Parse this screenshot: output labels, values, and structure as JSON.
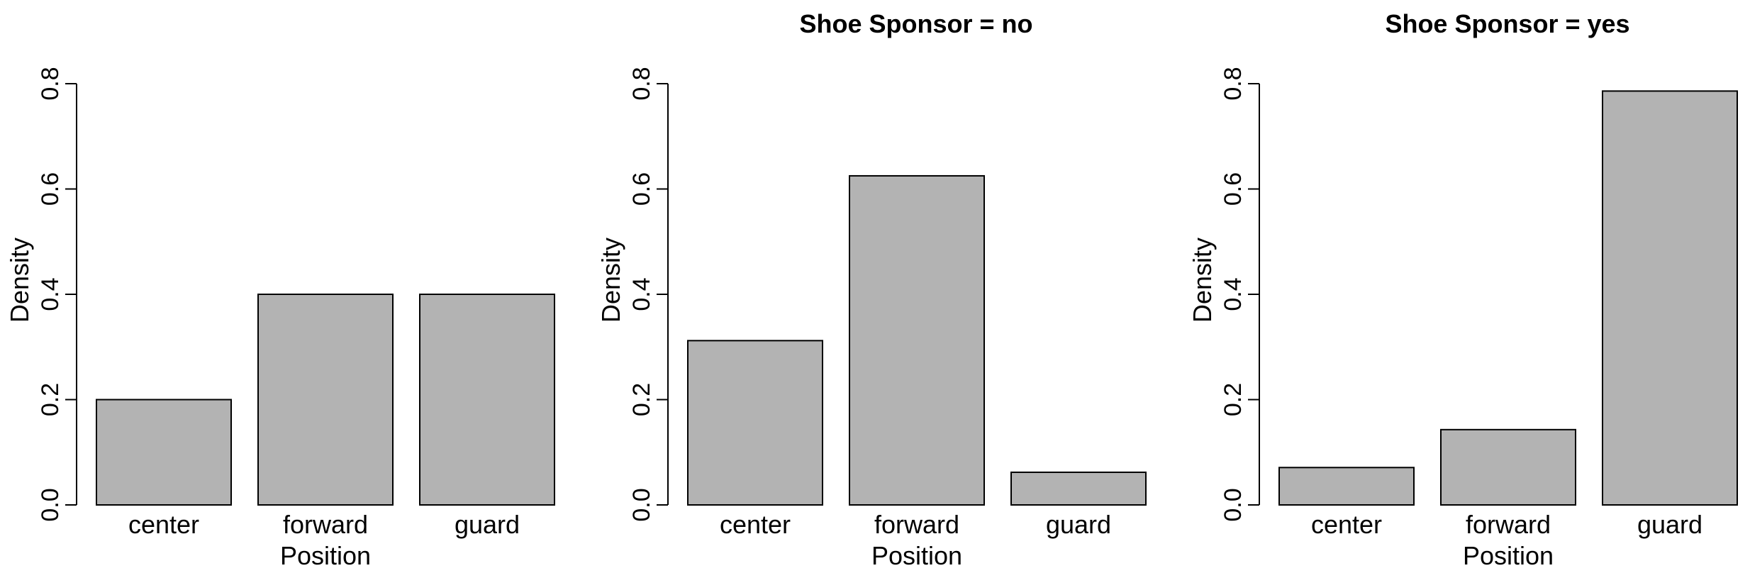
{
  "chart_data": [
    {
      "type": "bar",
      "title": "",
      "xlabel": "Position",
      "ylabel": "Density",
      "categories": [
        "center",
        "forward",
        "guard"
      ],
      "values": [
        0.2,
        0.4,
        0.4
      ],
      "ylim": [
        0,
        0.8
      ],
      "yticks": [
        "0.0",
        "0.2",
        "0.4",
        "0.6",
        "0.8"
      ],
      "bar_color": "#b3b3b3",
      "grid": false
    },
    {
      "type": "bar",
      "title": "Shoe Sponsor = no",
      "xlabel": "Position",
      "ylabel": "Density",
      "categories": [
        "center",
        "forward",
        "guard"
      ],
      "values": [
        0.312,
        0.625,
        0.062
      ],
      "ylim": [
        0,
        0.8
      ],
      "yticks": [
        "0.0",
        "0.2",
        "0.4",
        "0.6",
        "0.8"
      ],
      "bar_color": "#b3b3b3",
      "grid": false
    },
    {
      "type": "bar",
      "title": "Shoe Sponsor = yes",
      "xlabel": "Position",
      "ylabel": "Density",
      "categories": [
        "center",
        "forward",
        "guard"
      ],
      "values": [
        0.071,
        0.143,
        0.786
      ],
      "ylim": [
        0,
        0.8
      ],
      "yticks": [
        "0.0",
        "0.2",
        "0.4",
        "0.6",
        "0.8"
      ],
      "bar_color": "#b3b3b3",
      "grid": false
    }
  ]
}
